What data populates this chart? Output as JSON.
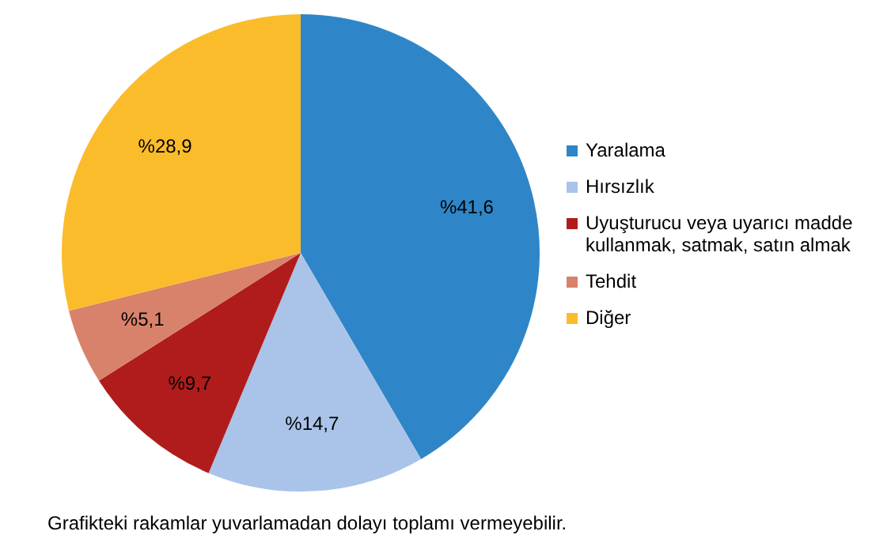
{
  "chart_data": {
    "type": "pie",
    "categories": [
      "Yaralama",
      "Hırsızlık",
      "Uyuşturucu veya uyarıcı madde kullanmak, satmak, satın almak",
      "Tehdit",
      "Diğer"
    ],
    "values": [
      41.6,
      14.7,
      9.7,
      5.1,
      28.9
    ],
    "colors": [
      "#2e86c8",
      "#a9c4e8",
      "#b01c1c",
      "#d9826b",
      "#fbbc2c"
    ],
    "value_labels": [
      "%41,6",
      "%14,7",
      "%9,7",
      "%5,1",
      "%28,9"
    ],
    "legend": "right",
    "annotations": [
      "Grafikteki rakamlar yuvarlamadan dolayı toplamı vermeyebilir."
    ]
  }
}
